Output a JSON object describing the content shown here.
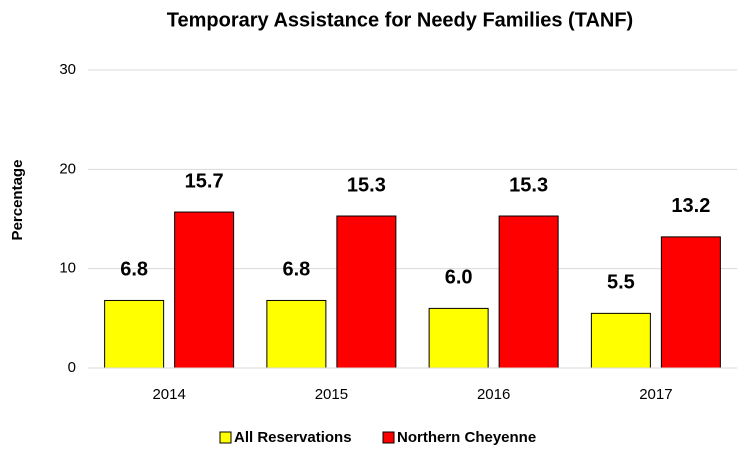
{
  "chart_data": {
    "type": "bar",
    "title": "Temporary Assistance for Needy Families (TANF)",
    "y_label": "Percentage",
    "categories": [
      "2014",
      "2015",
      "2016",
      "2017"
    ],
    "series": [
      {
        "name": "All Reservations",
        "color": "#ffff00",
        "values": [
          6.8,
          6.8,
          6.0,
          5.5
        ],
        "value_labels": [
          "6.8",
          "6.8",
          "6.0",
          "5.5"
        ]
      },
      {
        "name": "Northern Cheyenne",
        "color": "#ff0000",
        "values": [
          15.7,
          15.3,
          15.3,
          13.2
        ],
        "value_labels": [
          "15.7",
          "15.3",
          "15.3",
          "13.2"
        ]
      }
    ],
    "ylim": [
      0,
      30
    ],
    "yticks": [
      0,
      10,
      20,
      30
    ],
    "grid": true,
    "legend": "bottom"
  }
}
